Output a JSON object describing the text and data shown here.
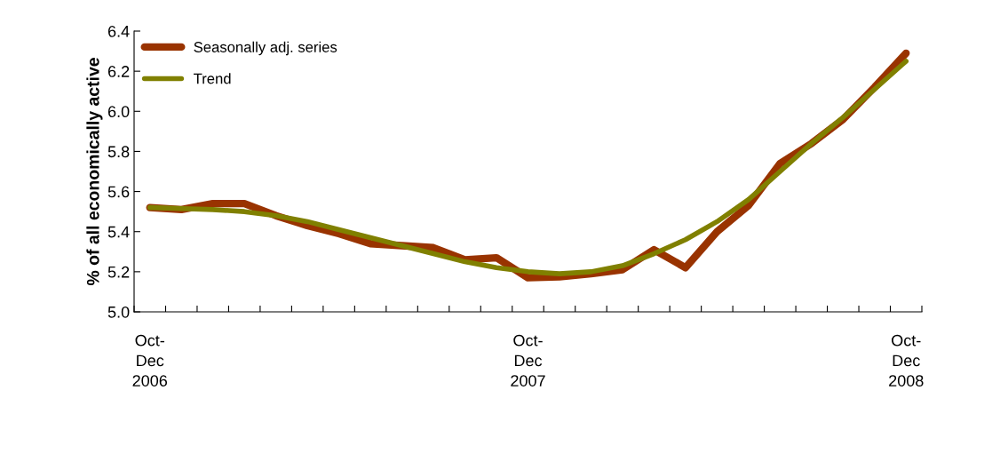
{
  "chart_data": {
    "type": "line",
    "ylabel": "% of all economically active",
    "categories": [
      "Oct-\nDec\n2006",
      null,
      null,
      null,
      null,
      null,
      null,
      null,
      null,
      null,
      null,
      null,
      "Oct-\nDec\n2007",
      null,
      null,
      null,
      null,
      null,
      null,
      null,
      null,
      null,
      null,
      null,
      "Oct-\nDec\n2008"
    ],
    "series": [
      {
        "name": "Seasonally adj. series",
        "color": "#993300",
        "values": [
          5.52,
          5.51,
          5.54,
          5.54,
          5.48,
          5.43,
          5.39,
          5.34,
          5.33,
          5.32,
          5.26,
          5.27,
          5.17,
          5.175,
          5.19,
          5.21,
          5.31,
          5.22,
          5.4,
          5.53,
          5.74,
          5.84,
          5.96,
          6.12,
          6.29
        ]
      },
      {
        "name": "Trend",
        "color": "#808000",
        "values": [
          5.52,
          5.515,
          5.51,
          5.5,
          5.48,
          5.45,
          5.41,
          5.37,
          5.33,
          5.29,
          5.25,
          5.22,
          5.2,
          5.19,
          5.2,
          5.23,
          5.29,
          5.36,
          5.45,
          5.56,
          5.7,
          5.84,
          5.97,
          6.11,
          6.25
        ]
      }
    ],
    "ylim": [
      5.0,
      6.4
    ],
    "yticks": [
      {
        "value": 5.0,
        "label": "5.0"
      },
      {
        "value": 5.2,
        "label": "5.2"
      },
      {
        "value": 5.4,
        "label": "5.4"
      },
      {
        "value": 5.6,
        "label": "5.6"
      },
      {
        "value": 5.8,
        "label": "5.8"
      },
      {
        "value": 6.0,
        "label": "6.0"
      },
      {
        "value": 6.2,
        "label": "6.2"
      },
      {
        "value": 6.4,
        "label": "6.4"
      }
    ],
    "grid": false,
    "legend": "top left",
    "marker": "none",
    "line_style": "solid"
  }
}
